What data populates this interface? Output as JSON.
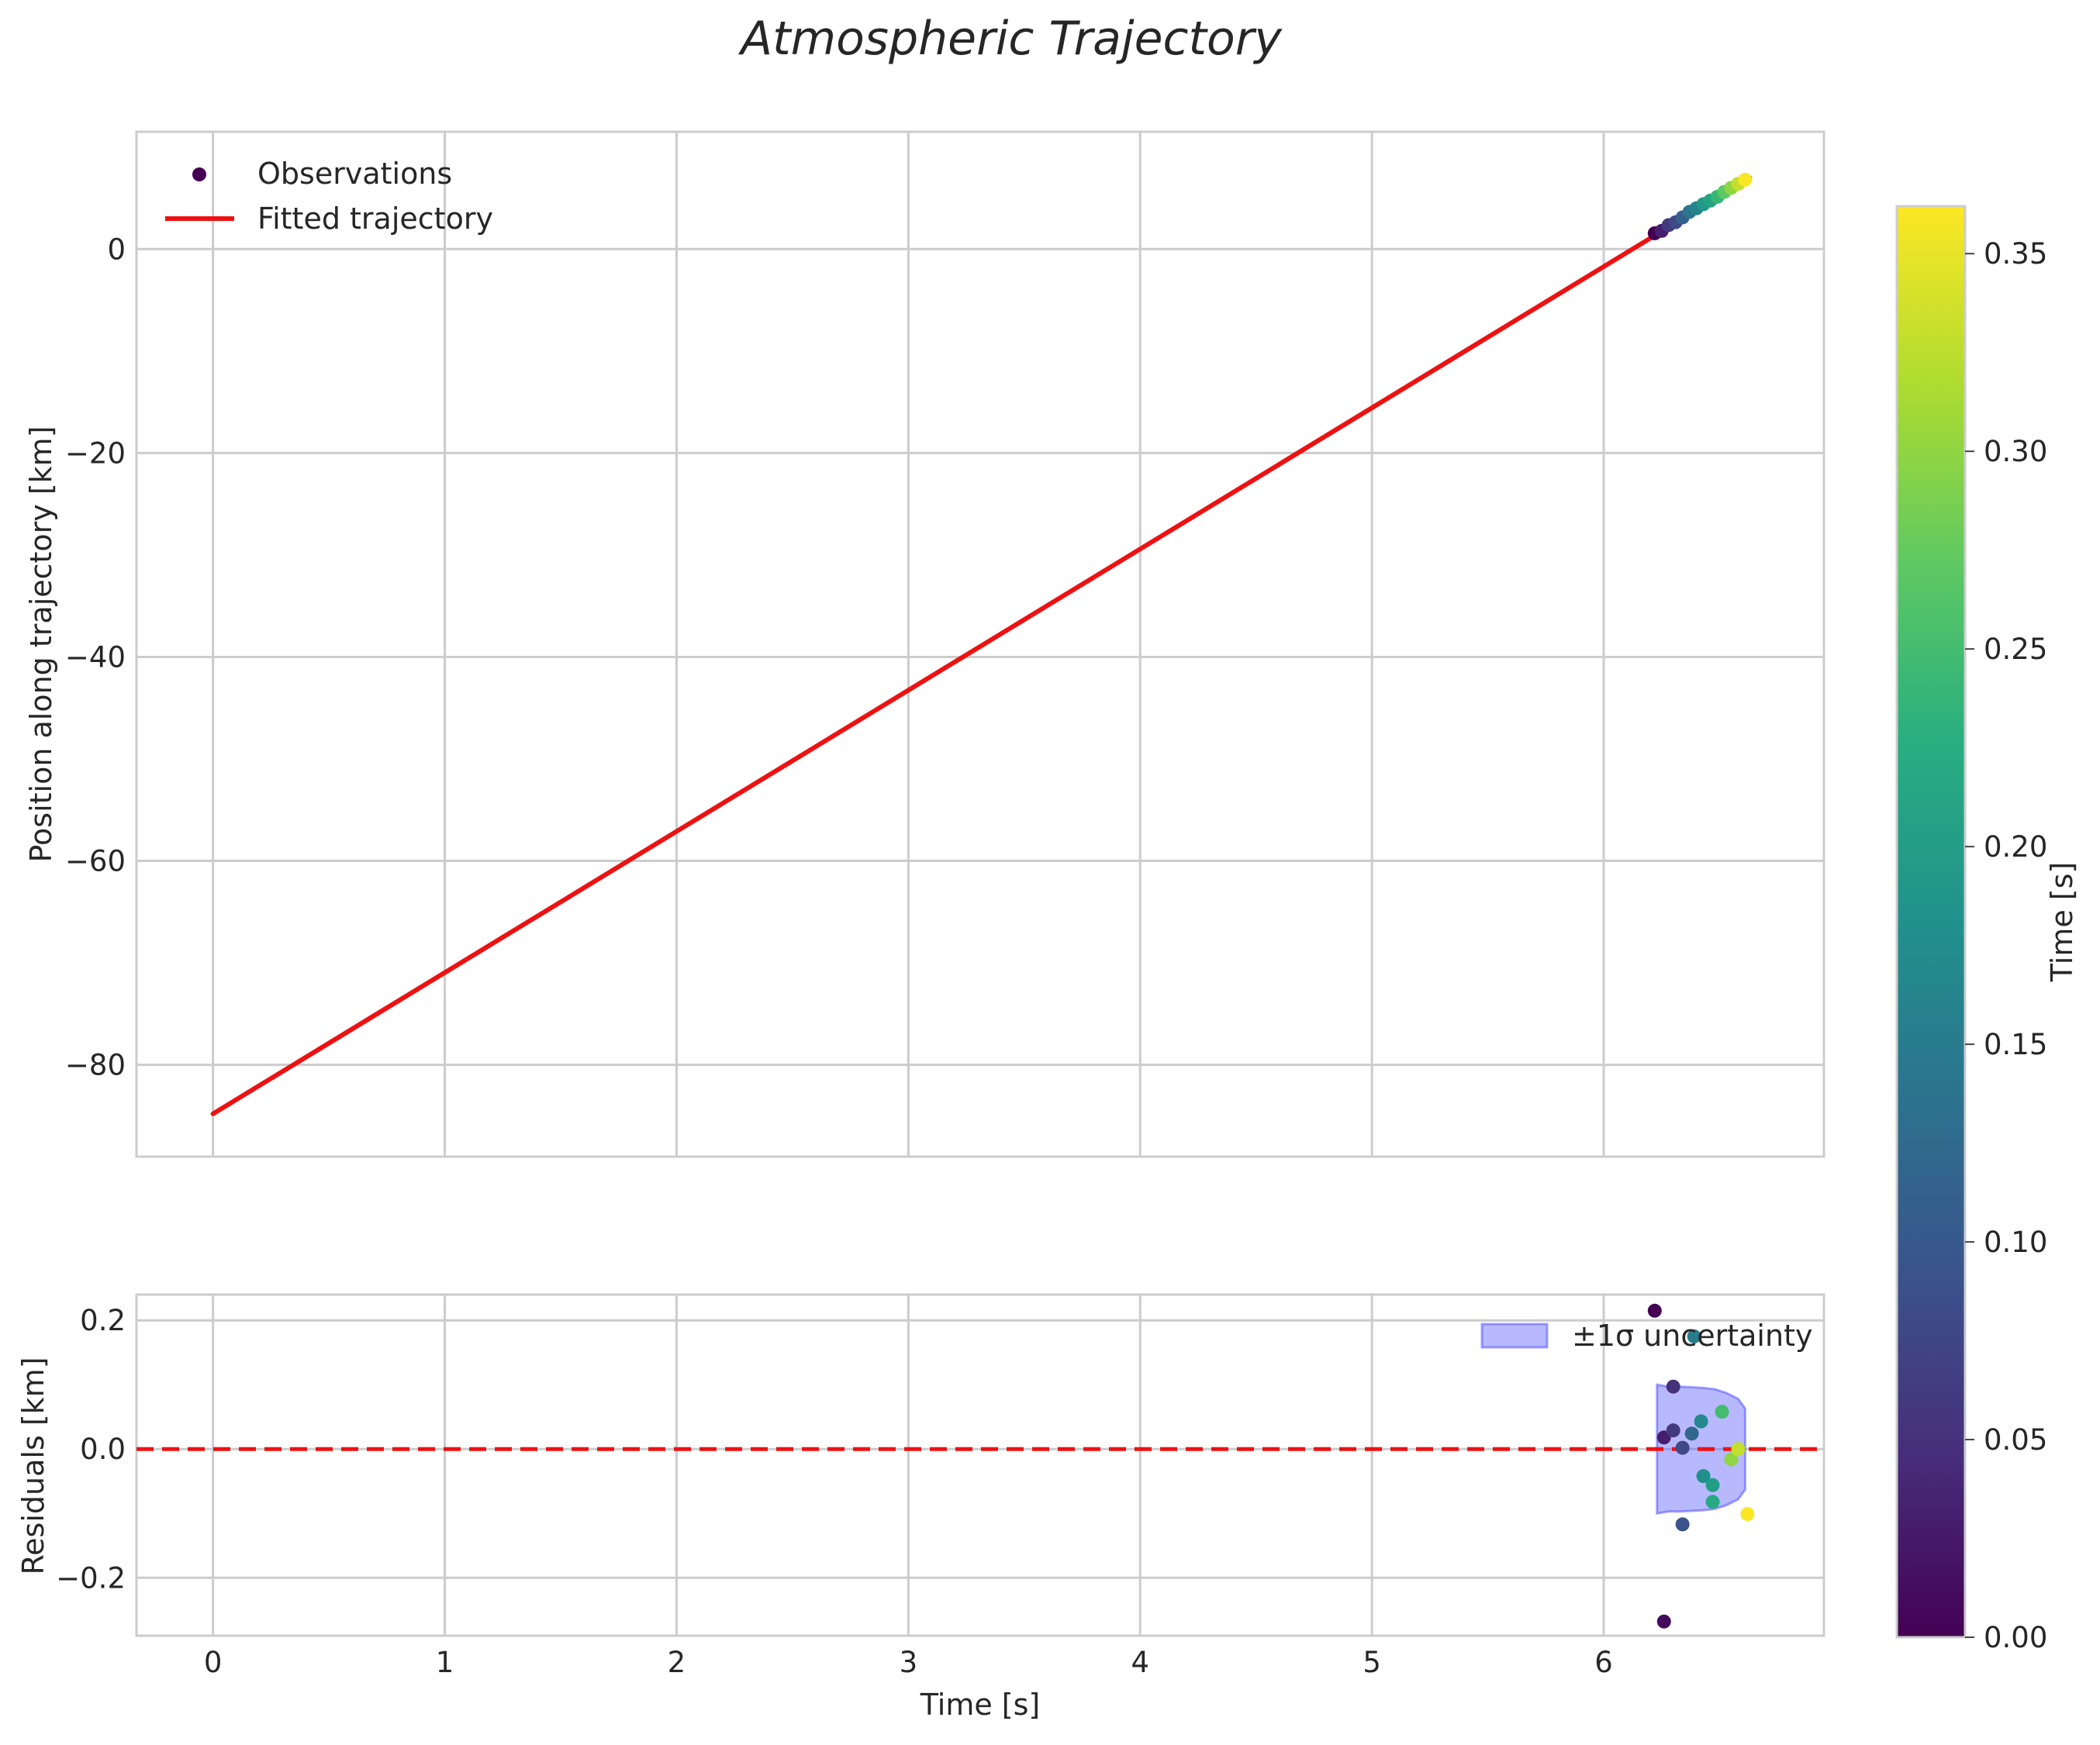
{
  "chart_data": [
    {
      "type": "scatter",
      "title": "Atmospheric Trajectory",
      "xlabel": "",
      "ylabel": "Position along trajectory [km]",
      "xlim": [
        -0.33,
        6.95
      ],
      "ylim": [
        -89,
        11.5
      ],
      "xticks": [
        0,
        1,
        2,
        3,
        4,
        5,
        6
      ],
      "yticks": [
        -80,
        -60,
        -40,
        -20,
        0
      ],
      "ytick_labels": [
        "−80",
        "−60",
        "−40",
        "−20",
        "0"
      ],
      "grid": true,
      "legend": {
        "placement": "top-left",
        "entries": [
          "Observations",
          "Fitted trajectory"
        ]
      },
      "fit_line": {
        "name": "Fitted trajectory",
        "color": "#ee1111",
        "x": [
          0,
          6.63
        ],
        "y": [
          -84.8,
          7.0
        ]
      },
      "series": [
        {
          "name": "Observations",
          "colormap": "viridis",
          "x": [
            6.22,
            6.25,
            6.28,
            6.31,
            6.34,
            6.37,
            6.4,
            6.43,
            6.46,
            6.49,
            6.52,
            6.55,
            6.58,
            6.61
          ],
          "y": [
            1.55,
            1.78,
            2.35,
            2.63,
            3.1,
            3.65,
            4.0,
            4.4,
            4.75,
            5.12,
            5.6,
            6.0,
            6.4,
            6.8
          ],
          "time": [
            0.0,
            0.03,
            0.06,
            0.08,
            0.11,
            0.14,
            0.16,
            0.19,
            0.21,
            0.24,
            0.27,
            0.3,
            0.33,
            0.36
          ]
        }
      ]
    },
    {
      "type": "scatter",
      "title": "",
      "xlabel": "Time [s]",
      "ylabel": "Residuals [km]",
      "xlim": [
        -0.33,
        6.95
      ],
      "ylim": [
        -0.29,
        0.24
      ],
      "xticks": [
        0,
        1,
        2,
        3,
        4,
        5,
        6
      ],
      "xtick_labels": [
        "0",
        "1",
        "2",
        "3",
        "4",
        "5",
        "6"
      ],
      "yticks": [
        -0.2,
        0.0,
        0.2
      ],
      "ytick_labels": [
        "−0.2",
        "0.0",
        "0.2"
      ],
      "grid": true,
      "zero_line": {
        "y": 0,
        "color": "#ee1111",
        "style": "dashed"
      },
      "legend": {
        "placement": "top-right",
        "entries": [
          "±1σ uncertainty"
        ]
      },
      "uncertainty_band": {
        "name": "±1σ uncertainty",
        "color": "#5555ff",
        "x": [
          6.23,
          6.28,
          6.33,
          6.38,
          6.43,
          6.48,
          6.53,
          6.58,
          6.61
        ],
        "upper": [
          0.1,
          0.097,
          0.097,
          0.096,
          0.095,
          0.093,
          0.087,
          0.078,
          0.063
        ],
        "lower": [
          -0.1,
          -0.097,
          -0.097,
          -0.096,
          -0.095,
          -0.093,
          -0.087,
          -0.078,
          -0.063
        ]
      },
      "series": [
        {
          "name": "Residuals",
          "colormap": "viridis",
          "x": [
            6.22,
            6.26,
            6.26,
            6.3,
            6.3,
            6.34,
            6.34,
            6.38,
            6.39,
            6.42,
            6.43,
            6.47,
            6.47,
            6.51,
            6.55,
            6.58,
            6.62
          ],
          "y": [
            0.215,
            -0.268,
            0.018,
            0.097,
            0.029,
            0.002,
            -0.117,
            0.024,
            0.175,
            0.043,
            -0.042,
            -0.056,
            -0.082,
            0.058,
            -0.016,
            0.0,
            -0.101
          ],
          "time": [
            0.0,
            0.01,
            0.03,
            0.05,
            0.06,
            0.08,
            0.09,
            0.12,
            0.15,
            0.17,
            0.18,
            0.2,
            0.22,
            0.25,
            0.3,
            0.33,
            0.36
          ]
        }
      ]
    },
    {
      "type": "colorbar",
      "label": "Time [s]",
      "colormap": "viridis",
      "range": [
        0.0,
        0.362
      ],
      "ticks": [
        0.0,
        0.05,
        0.1,
        0.15,
        0.2,
        0.25,
        0.3,
        0.35
      ],
      "tick_labels": [
        "0.00",
        "0.05",
        "0.10",
        "0.15",
        "0.20",
        "0.25",
        "0.30",
        "0.35"
      ]
    }
  ]
}
